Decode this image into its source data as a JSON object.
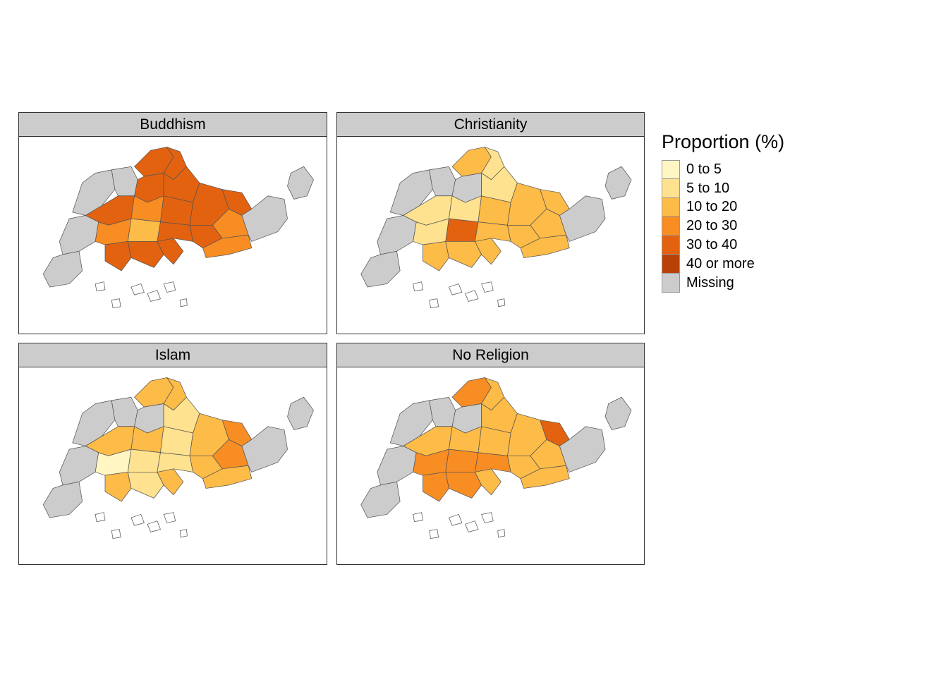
{
  "panels": [
    {
      "title": "Buddhism"
    },
    {
      "title": "Christianity"
    },
    {
      "title": "Islam"
    },
    {
      "title": "No Religion"
    }
  ],
  "legend": {
    "title": "Proportion (%)",
    "items": [
      {
        "label": "0 to 5",
        "color": "#fff6c4"
      },
      {
        "label": "5 to 10",
        "color": "#fee28f"
      },
      {
        "label": "10 to 20",
        "color": "#fdbb48"
      },
      {
        "label": "20 to 30",
        "color": "#f88d24"
      },
      {
        "label": "30 to 40",
        "color": "#e26210"
      },
      {
        "label": "40 or more",
        "color": "#b84107"
      },
      {
        "label": "Missing",
        "color": "#cccccc"
      }
    ]
  }
}
